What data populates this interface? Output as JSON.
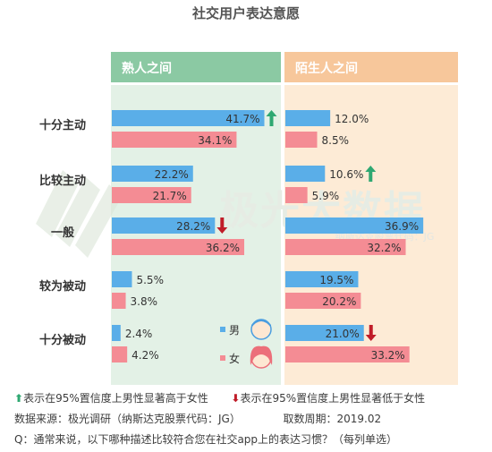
{
  "chart_data": {
    "type": "bar",
    "title": "社交用户表达意愿",
    "panels": [
      "熟人之间",
      "陌生人之间"
    ],
    "categories": [
      "十分主动",
      "比较主动",
      "一般",
      "较为被动",
      "十分被动"
    ],
    "series": [
      {
        "name": "男",
        "color": "#5aaee8",
        "values": {
          "熟人之间": [
            41.7,
            22.2,
            28.2,
            5.5,
            2.4
          ],
          "陌生人之间": [
            12.0,
            10.6,
            36.9,
            19.5,
            21.0
          ]
        },
        "labels": {
          "熟人之间": [
            "41.7%",
            "22.2%",
            "28.2%",
            "5.5%",
            "2.4%"
          ],
          "陌生人之间": [
            "12.0%",
            "10.6%",
            "36.9%",
            "19.5%",
            "21.0%"
          ]
        }
      },
      {
        "name": "女",
        "color": "#f48c94",
        "values": {
          "熟人之间": [
            34.1,
            21.7,
            36.2,
            3.8,
            4.2
          ],
          "陌生人之间": [
            8.5,
            5.9,
            32.2,
            20.2,
            33.2
          ]
        },
        "labels": {
          "熟人之间": [
            "34.1%",
            "21.7%",
            "36.2%",
            "3.8%",
            "4.2%"
          ],
          "陌生人之间": [
            "8.5%",
            "5.9%",
            "32.2%",
            "20.2%",
            "33.2%"
          ]
        }
      }
    ],
    "significance": [
      {
        "panel": "熟人之间",
        "category": "十分主动",
        "mark": "up"
      },
      {
        "panel": "熟人之间",
        "category": "一般",
        "mark": "down"
      },
      {
        "panel": "陌生人之间",
        "category": "比较主动",
        "mark": "up"
      },
      {
        "panel": "陌生人之间",
        "category": "十分被动",
        "mark": "down"
      }
    ],
    "xlim": [
      0,
      45
    ]
  },
  "colors": {
    "panel_header": "#8bc9a3",
    "panel_left_bg": "#e3f1e6",
    "panel_right_header": "#f7c79b",
    "panel_right_bg": "#fdebd6",
    "arrow_up": "#2fa872",
    "arrow_down": "#c01c28"
  },
  "watermark": {
    "text": "极光大数据",
    "sub": "纳斯达克股票代码：JG"
  },
  "footer": {
    "legend_up": "表示在95%置信度上男性显著高于女性",
    "legend_down": "表示在95%置信度上男性显著低于女性",
    "source": "数据来源：极光调研（纳斯达克股票代码：JG）",
    "period": "取数周期：2019.02",
    "question": "Q：通常来说，以下哪种描述比较符合您在社交app上的表达习惯？（每列单选）"
  }
}
